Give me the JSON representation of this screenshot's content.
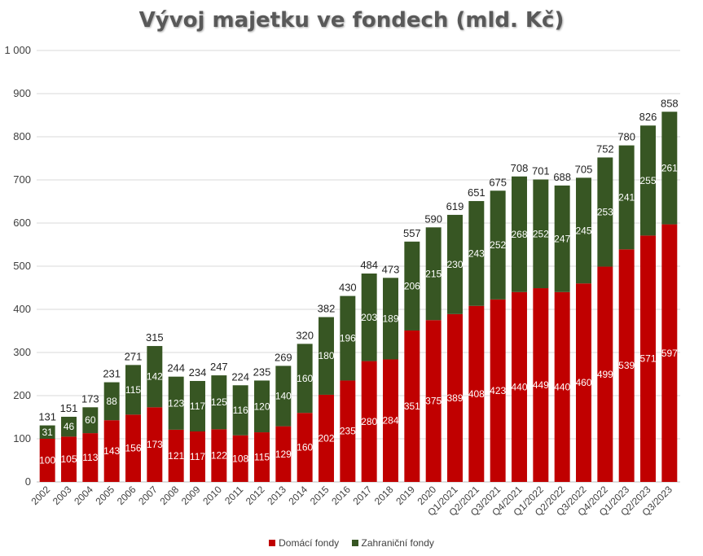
{
  "chart_data": {
    "type": "bar",
    "stacked": true,
    "title": "Vývoj majetku ve fondech (mld. Kč)",
    "categories": [
      "2002",
      "2003",
      "2004",
      "2005",
      "2006",
      "2007",
      "2008",
      "2009",
      "2010",
      "2011",
      "2012",
      "2013",
      "2014",
      "2015",
      "2016",
      "2017",
      "2018",
      "2019",
      "2020",
      "Q1/2021",
      "Q2/2021",
      "Q3/2021",
      "Q4/2021",
      "Q1/2022",
      "Q2/2022",
      "Q3/2022",
      "Q4/2022",
      "Q1/2023",
      "Q2/2023",
      "Q3/2023"
    ],
    "series": [
      {
        "name": "Domácí fondy",
        "color": "#c00000",
        "values": [
          100,
          105,
          113,
          143,
          156,
          173,
          121,
          117,
          122,
          108,
          115,
          129,
          160,
          202,
          235,
          280,
          284,
          351,
          375,
          389,
          408,
          423,
          440,
          449,
          440,
          460,
          499,
          539,
          571,
          597
        ]
      },
      {
        "name": "Zahraniční fondy",
        "color": "#375623",
        "values": [
          31,
          46,
          60,
          88,
          115,
          142,
          123,
          117,
          125,
          116,
          120,
          140,
          160,
          180,
          196,
          203,
          189,
          206,
          215,
          230,
          243,
          252,
          268,
          252,
          247,
          245,
          253,
          241,
          255,
          261
        ]
      }
    ],
    "totals": [
      131,
      151,
      173,
      231,
      271,
      315,
      244,
      234,
      247,
      224,
      235,
      269,
      320,
      382,
      430,
      484,
      473,
      557,
      590,
      619,
      651,
      675,
      708,
      701,
      688,
      705,
      752,
      780,
      826,
      858
    ],
    "yticks": [
      "0",
      "100",
      "200",
      "300",
      "400",
      "500",
      "600",
      "700",
      "800",
      "900",
      "1 000"
    ],
    "ylim": [
      0,
      1000
    ],
    "grid": true,
    "legend_position": "bottom"
  }
}
